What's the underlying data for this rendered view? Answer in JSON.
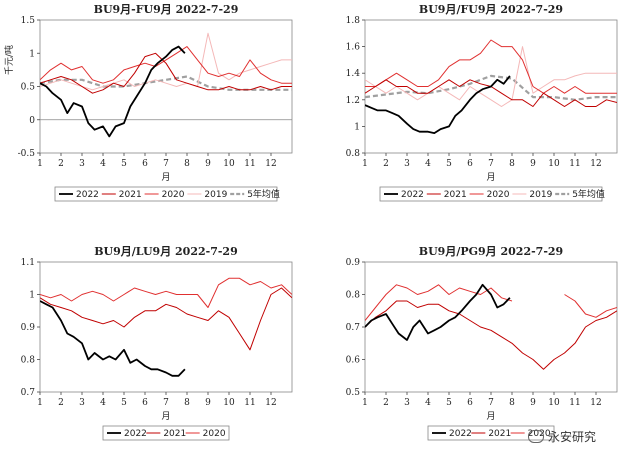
{
  "watermark": {
    "text": "永安研究"
  },
  "colors": {
    "2022": "#000000",
    "2021": "#c00000",
    "2020": "#e03030",
    "2019": "#f4b8b8",
    "5年均值": "#a0a0a0"
  },
  "chart_data": [
    {
      "type": "line",
      "title": "BU9月-FU9月 2022-7-29",
      "xlabel": "月",
      "ylabel": "千元/吨",
      "xlim": [
        1,
        13
      ],
      "ylim": [
        -0.5,
        1.5
      ],
      "yticks": [
        "1.5",
        "1",
        "0.5",
        "0",
        "-0.5"
      ],
      "yticks_values": [
        1.5,
        1.0,
        0.5,
        0.0,
        -0.5
      ],
      "xticks": [
        "1",
        "2",
        "3",
        "4",
        "5",
        "6",
        "7",
        "8",
        "9",
        "10",
        "11",
        "12"
      ],
      "legend": [
        "2022",
        "2021",
        "2020",
        "2019",
        "5年均值"
      ],
      "series": [
        {
          "name": "2022",
          "style": "thick",
          "x": [
            1,
            1.3,
            1.6,
            2,
            2.3,
            2.6,
            3,
            3.3,
            3.6,
            4,
            4.3,
            4.6,
            5,
            5.3,
            5.6,
            6,
            6.3,
            6.6,
            7,
            7.3,
            7.6,
            7.9
          ],
          "y": [
            0.55,
            0.5,
            0.4,
            0.3,
            0.1,
            0.25,
            0.2,
            -0.05,
            -0.15,
            -0.1,
            -0.25,
            -0.1,
            -0.05,
            0.2,
            0.35,
            0.55,
            0.75,
            0.85,
            0.95,
            1.05,
            1.1,
            1.0
          ]
        },
        {
          "name": "2021",
          "style": "thin",
          "x": [
            1,
            1.5,
            2,
            2.5,
            3,
            3.5,
            4,
            4.5,
            5,
            5.5,
            6,
            6.5,
            7,
            7.5,
            8,
            8.5,
            9,
            9.5,
            10,
            10.5,
            11,
            11.5,
            12,
            12.5,
            13
          ],
          "y": [
            0.55,
            0.6,
            0.65,
            0.6,
            0.5,
            0.4,
            0.45,
            0.55,
            0.5,
            0.7,
            0.95,
            1.0,
            0.85,
            0.6,
            0.55,
            0.5,
            0.45,
            0.45,
            0.5,
            0.45,
            0.45,
            0.5,
            0.45,
            0.5,
            0.5
          ]
        },
        {
          "name": "2020",
          "style": "thin",
          "x": [
            1,
            1.5,
            2,
            2.5,
            3,
            3.5,
            4,
            4.5,
            5,
            5.5,
            6,
            6.5,
            7,
            7.5,
            8,
            8.5,
            9,
            9.5,
            10,
            10.5,
            11,
            11.5,
            12,
            12.5,
            13
          ],
          "y": [
            0.6,
            0.75,
            0.85,
            0.75,
            0.8,
            0.6,
            0.55,
            0.6,
            0.75,
            0.8,
            0.85,
            0.8,
            0.9,
            1.0,
            1.1,
            0.9,
            0.7,
            0.65,
            0.7,
            0.65,
            0.9,
            0.7,
            0.6,
            0.55,
            0.55
          ]
        },
        {
          "name": "2019",
          "style": "thin",
          "x": [
            1,
            1.5,
            2,
            2.5,
            3,
            3.5,
            4,
            4.5,
            5,
            5.5,
            6,
            6.5,
            7,
            7.5,
            8,
            8.5,
            9,
            9.5,
            10,
            10.5,
            11,
            11.5,
            12,
            12.5,
            13
          ],
          "y": [
            0.5,
            0.55,
            0.6,
            0.55,
            0.5,
            0.45,
            0.5,
            0.55,
            0.6,
            0.5,
            0.55,
            0.6,
            0.55,
            0.5,
            0.55,
            0.5,
            1.3,
            0.7,
            0.6,
            0.7,
            0.75,
            0.8,
            0.85,
            0.9,
            0.9
          ]
        },
        {
          "name": "5年均值",
          "style": "dash",
          "x": [
            1,
            2,
            3,
            4,
            5,
            6,
            7,
            8,
            9,
            10,
            11,
            12,
            13
          ],
          "y": [
            0.55,
            0.6,
            0.6,
            0.5,
            0.5,
            0.55,
            0.6,
            0.65,
            0.5,
            0.45,
            0.45,
            0.45,
            0.45
          ]
        }
      ]
    },
    {
      "type": "line",
      "title": "BU9月/FU9月 2022-7-29",
      "xlabel": "月",
      "ylabel": "",
      "xlim": [
        1,
        13
      ],
      "ylim": [
        0.8,
        1.8
      ],
      "yticks": [
        "1.8",
        "1.6",
        "1.4",
        "1.2",
        "1",
        "0.8"
      ],
      "yticks_values": [
        1.8,
        1.6,
        1.4,
        1.2,
        1.0,
        0.8
      ],
      "xticks": [
        "1",
        "2",
        "3",
        "4",
        "5",
        "6",
        "7",
        "8",
        "9",
        "10",
        "11",
        "12"
      ],
      "legend": [
        "2022",
        "2021",
        "2020",
        "2019",
        "5年均值"
      ],
      "series": [
        {
          "name": "2022",
          "style": "thick",
          "x": [
            1,
            1.3,
            1.6,
            2,
            2.3,
            2.6,
            3,
            3.3,
            3.6,
            4,
            4.3,
            4.6,
            5,
            5.3,
            5.6,
            6,
            6.3,
            6.6,
            7,
            7.3,
            7.6,
            7.9
          ],
          "y": [
            1.16,
            1.14,
            1.12,
            1.12,
            1.1,
            1.08,
            1.02,
            0.98,
            0.96,
            0.96,
            0.95,
            0.98,
            1.0,
            1.08,
            1.12,
            1.2,
            1.25,
            1.28,
            1.3,
            1.35,
            1.32,
            1.38
          ]
        },
        {
          "name": "2021",
          "style": "thin",
          "x": [
            1,
            1.5,
            2,
            2.5,
            3,
            3.5,
            4,
            4.5,
            5,
            5.5,
            6,
            6.5,
            7,
            7.5,
            8,
            8.5,
            9,
            9.5,
            10,
            10.5,
            11,
            11.5,
            12,
            12.5,
            13
          ],
          "y": [
            1.25,
            1.3,
            1.35,
            1.3,
            1.3,
            1.25,
            1.25,
            1.3,
            1.35,
            1.3,
            1.35,
            1.32,
            1.3,
            1.25,
            1.2,
            1.2,
            1.15,
            1.25,
            1.2,
            1.15,
            1.2,
            1.15,
            1.15,
            1.2,
            1.18
          ]
        },
        {
          "name": "2020",
          "style": "thin",
          "x": [
            1,
            1.5,
            2,
            2.5,
            3,
            3.5,
            4,
            4.5,
            5,
            5.5,
            6,
            6.5,
            7,
            7.5,
            8,
            8.5,
            9,
            9.5,
            10,
            10.5,
            11,
            11.5,
            12,
            12.5,
            13
          ],
          "y": [
            1.3,
            1.3,
            1.35,
            1.4,
            1.35,
            1.3,
            1.3,
            1.35,
            1.45,
            1.5,
            1.5,
            1.55,
            1.65,
            1.6,
            1.6,
            1.5,
            1.3,
            1.25,
            1.3,
            1.25,
            1.3,
            1.25,
            1.25,
            1.25,
            1.25
          ]
        },
        {
          "name": "2019",
          "style": "thin",
          "x": [
            1,
            1.5,
            2,
            2.5,
            3,
            3.5,
            4,
            4.5,
            5,
            5.5,
            6,
            6.5,
            7,
            7.5,
            8,
            8.5,
            9,
            9.5,
            10,
            10.5,
            11,
            11.5,
            12,
            12.5,
            13
          ],
          "y": [
            1.35,
            1.3,
            1.25,
            1.3,
            1.25,
            1.2,
            1.25,
            1.3,
            1.25,
            1.2,
            1.3,
            1.25,
            1.2,
            1.15,
            1.2,
            1.6,
            1.25,
            1.3,
            1.35,
            1.35,
            1.38,
            1.4,
            1.4,
            1.4,
            1.4
          ]
        },
        {
          "name": "5年均值",
          "style": "dash",
          "x": [
            1,
            2,
            3,
            4,
            5,
            6,
            7,
            8,
            9,
            10,
            11,
            12,
            13
          ],
          "y": [
            1.22,
            1.24,
            1.26,
            1.25,
            1.28,
            1.32,
            1.38,
            1.36,
            1.22,
            1.22,
            1.2,
            1.22,
            1.22
          ]
        }
      ]
    },
    {
      "type": "line",
      "title": "BU9月/LU9月 2022-7-29",
      "xlabel": "月",
      "ylabel": "",
      "xlim": [
        1,
        13
      ],
      "ylim": [
        0.7,
        1.1
      ],
      "yticks": [
        "1.1",
        "1",
        "0.9",
        "0.8",
        "0.7"
      ],
      "yticks_values": [
        1.1,
        1.0,
        0.9,
        0.8,
        0.7
      ],
      "xticks": [
        "1",
        "2",
        "3",
        "4",
        "5",
        "6",
        "7",
        "8",
        "9",
        "10",
        "11",
        "12"
      ],
      "legend": [
        "2022",
        "2021",
        "2020"
      ],
      "series": [
        {
          "name": "2022",
          "style": "thick",
          "x": [
            1,
            1.3,
            1.6,
            2,
            2.3,
            2.6,
            3,
            3.3,
            3.6,
            4,
            4.3,
            4.6,
            5,
            5.3,
            5.6,
            6,
            6.3,
            6.6,
            7,
            7.3,
            7.6,
            7.9
          ],
          "y": [
            0.98,
            0.97,
            0.96,
            0.92,
            0.88,
            0.87,
            0.85,
            0.8,
            0.82,
            0.8,
            0.81,
            0.8,
            0.83,
            0.79,
            0.8,
            0.78,
            0.77,
            0.77,
            0.76,
            0.75,
            0.75,
            0.77
          ]
        },
        {
          "name": "2021",
          "style": "thin",
          "x": [
            1,
            1.5,
            2,
            2.5,
            3,
            3.5,
            4,
            4.5,
            5,
            5.5,
            6,
            6.5,
            7,
            7.5,
            8,
            8.5,
            9,
            9.5,
            10,
            10.5,
            11,
            11.5,
            12,
            12.5,
            13
          ],
          "y": [
            0.99,
            0.97,
            0.96,
            0.95,
            0.93,
            0.92,
            0.91,
            0.92,
            0.9,
            0.93,
            0.95,
            0.95,
            0.97,
            0.96,
            0.94,
            0.93,
            0.92,
            0.95,
            0.93,
            0.88,
            0.83,
            0.92,
            1.0,
            1.02,
            0.99
          ]
        },
        {
          "name": "2020",
          "style": "thin",
          "x": [
            1,
            1.5,
            2,
            2.5,
            3,
            3.5,
            4,
            4.5,
            5,
            5.5,
            6,
            6.5,
            7,
            7.5,
            8,
            8.5,
            9,
            9.5,
            10,
            10.5,
            11,
            11.5,
            12,
            12.5,
            13
          ],
          "y": [
            1.0,
            0.99,
            1.0,
            0.98,
            1.0,
            1.01,
            1.0,
            0.98,
            1.0,
            1.02,
            1.01,
            1.0,
            1.01,
            1.0,
            1.0,
            1.0,
            0.96,
            1.03,
            1.05,
            1.05,
            1.03,
            1.04,
            1.02,
            1.03,
            1.0
          ]
        }
      ]
    },
    {
      "type": "line",
      "title": "BU9月/PG9月 2022-7-29",
      "xlabel": "月",
      "ylabel": "",
      "xlim": [
        1,
        13
      ],
      "ylim": [
        0.5,
        0.9
      ],
      "yticks": [
        "0.9",
        "0.8",
        "0.7",
        "0.6",
        "0.5"
      ],
      "yticks_values": [
        0.9,
        0.8,
        0.7,
        0.6,
        0.5
      ],
      "xticks": [
        "1",
        "2",
        "3",
        "4",
        "5",
        "6",
        "7",
        "8",
        "9",
        "10",
        "11",
        "12"
      ],
      "legend": [
        "2022",
        "2021",
        "2020"
      ],
      "series": [
        {
          "name": "2022",
          "style": "thick",
          "x": [
            1,
            1.3,
            1.6,
            2,
            2.3,
            2.6,
            3,
            3.3,
            3.6,
            4,
            4.3,
            4.6,
            5,
            5.3,
            5.6,
            6,
            6.3,
            6.6,
            7,
            7.3,
            7.6,
            7.9
          ],
          "y": [
            0.7,
            0.72,
            0.73,
            0.74,
            0.71,
            0.68,
            0.66,
            0.7,
            0.72,
            0.68,
            0.69,
            0.7,
            0.72,
            0.73,
            0.75,
            0.78,
            0.8,
            0.83,
            0.8,
            0.76,
            0.77,
            0.79
          ]
        },
        {
          "name": "2021",
          "style": "thin",
          "x": [
            1,
            1.5,
            2,
            2.5,
            3,
            3.5,
            4,
            4.5,
            5,
            5.5,
            6,
            6.5,
            7,
            7.5,
            8,
            8.5,
            9,
            9.5,
            10,
            10.5,
            11,
            11.5,
            12,
            12.5,
            13
          ],
          "y": [
            0.7,
            0.73,
            0.75,
            0.78,
            0.78,
            0.76,
            0.77,
            0.77,
            0.75,
            0.74,
            0.72,
            0.7,
            0.69,
            0.67,
            0.65,
            0.62,
            0.6,
            0.57,
            0.6,
            0.62,
            0.65,
            0.7,
            0.72,
            0.73,
            0.75
          ]
        },
        {
          "name": "2020",
          "style": "thin",
          "x": [
            1,
            1.5,
            2,
            2.5,
            3,
            3.5,
            4,
            4.5,
            5,
            5.5,
            6,
            6.5,
            7,
            7.5,
            8,
            8.5,
            9,
            9.5,
            10,
            10.5,
            11,
            11.5,
            12,
            12.5,
            13
          ],
          "y": [
            0.72,
            0.76,
            0.8,
            0.83,
            0.82,
            0.8,
            0.81,
            0.83,
            0.8,
            0.82,
            0.81,
            0.8,
            0.82,
            0.79,
            0.78,
            null,
            null,
            null,
            null,
            0.8,
            0.78,
            0.74,
            0.73,
            0.75,
            0.76
          ]
        }
      ]
    }
  ]
}
